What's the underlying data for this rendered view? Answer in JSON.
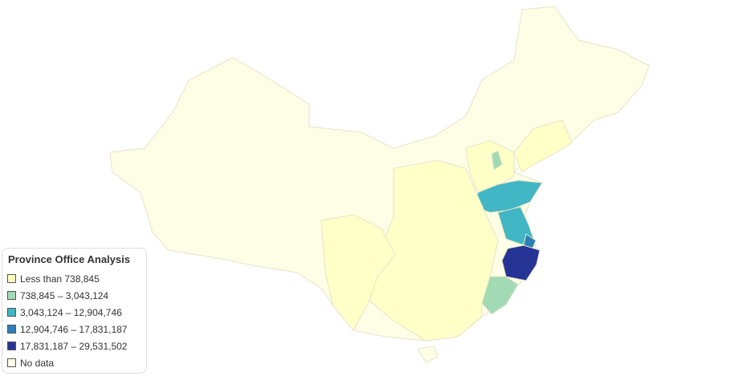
{
  "legend": {
    "title": "Province Office Analysis",
    "items": [
      {
        "label": "Less than 738,845",
        "color": "#ffffbf"
      },
      {
        "label": "738,845 – 3,043,124",
        "color": "#a1dab4"
      },
      {
        "label": "3,043,124 – 12,904,746",
        "color": "#41b6c4"
      },
      {
        "label": "12,904,746 – 17,831,187",
        "color": "#2c7fb8"
      },
      {
        "label": "17,831,187 – 29,531,502",
        "color": "#253494"
      },
      {
        "label": "No data",
        "color": "#ffffe5"
      }
    ]
  }
}
